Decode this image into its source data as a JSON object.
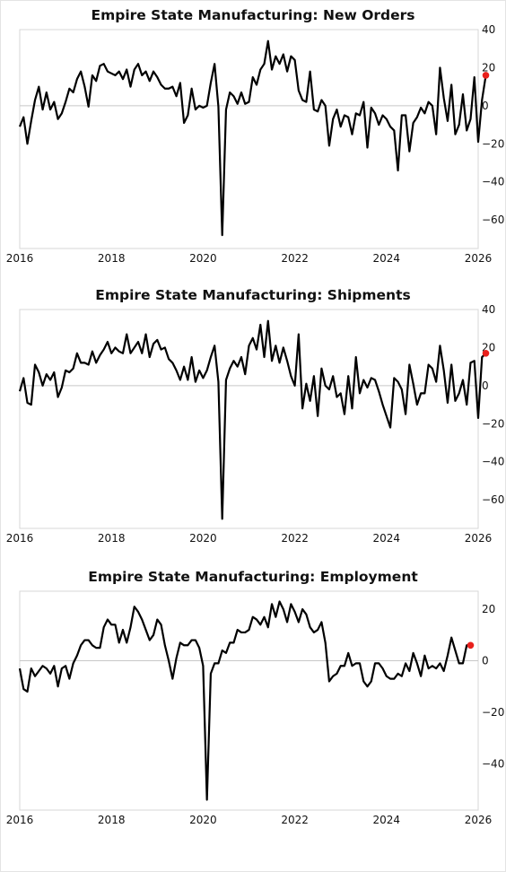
{
  "chart_data": [
    {
      "type": "line",
      "title": "Empire State Manufacturing: New Orders",
      "xlabel": "",
      "ylabel": "",
      "xlim": [
        2016,
        2026
      ],
      "ylim": [
        -75,
        40
      ],
      "x_ticks": [
        "2016",
        "2018",
        "2020",
        "2022",
        "2024",
        "2026"
      ],
      "y_ticks": [
        "40",
        "20",
        "0",
        "−20",
        "−40",
        "−60"
      ],
      "y_tick_values": [
        40,
        20,
        0,
        -20,
        -40,
        -60
      ],
      "grid": false,
      "zero_line": true,
      "line_color": "#000000",
      "marker_color": "#e8201c",
      "series": [
        {
          "start": "2016-01",
          "values": [
            -11,
            -6,
            -20,
            -8,
            3,
            10,
            -2,
            7,
            -2,
            2,
            -7,
            -4,
            2,
            9,
            7,
            14,
            18,
            10,
            -0.5,
            16,
            13,
            21,
            22,
            18,
            17,
            16,
            18,
            14,
            19,
            10,
            19,
            22,
            16,
            18,
            13,
            18,
            15,
            11,
            9,
            9,
            10,
            5,
            12,
            -9,
            -5,
            9,
            -2,
            0,
            -1,
            0,
            12,
            22,
            -0.5,
            -68,
            -2,
            7,
            5,
            1,
            7,
            1,
            2,
            15,
            11,
            19,
            22,
            34,
            19,
            26,
            22,
            27,
            18,
            26,
            24,
            8,
            3,
            2,
            18,
            -2,
            -3,
            3,
            0,
            -21,
            -7,
            -2,
            -11,
            -5,
            -6,
            -15,
            -4,
            -5,
            2,
            -22,
            -1,
            -4,
            -10,
            -5,
            -7,
            -11,
            -13,
            -34,
            -5,
            -5,
            -24,
            -9,
            -6,
            -1,
            -4,
            2,
            0,
            -15,
            20,
            4,
            -8,
            11,
            -15,
            -10,
            6,
            -13,
            -7,
            15,
            -19,
            3,
            16
          ]
        }
      ]
    },
    {
      "type": "line",
      "title": "Empire State Manufacturing: Shipments",
      "xlabel": "",
      "ylabel": "",
      "xlim": [
        2016,
        2026
      ],
      "ylim": [
        -75,
        40
      ],
      "x_ticks": [
        "2016",
        "2018",
        "2020",
        "2022",
        "2024",
        "2026"
      ],
      "y_ticks": [
        "40",
        "20",
        "0",
        "−20",
        "−40",
        "−60"
      ],
      "y_tick_values": [
        40,
        20,
        0,
        -20,
        -40,
        -60
      ],
      "grid": false,
      "zero_line": true,
      "line_color": "#000000",
      "marker_color": "#e8201c",
      "series": [
        {
          "start": "2016-01",
          "values": [
            -3,
            4,
            -9,
            -10,
            11,
            7,
            0,
            6,
            3,
            7,
            -6,
            -1,
            8,
            7,
            9,
            17,
            12,
            12,
            11,
            18,
            12,
            16,
            19,
            23,
            17,
            20,
            18,
            17,
            27,
            17,
            20,
            23,
            17,
            27,
            15,
            22,
            24,
            19,
            20,
            14,
            12,
            8,
            3,
            10,
            3,
            15,
            2,
            8,
            4,
            8,
            15,
            21,
            2,
            -70,
            3,
            9,
            13,
            10,
            15,
            6,
            21,
            25,
            19,
            32,
            15,
            34,
            13,
            21,
            12,
            20,
            13,
            5,
            0,
            27,
            -12,
            1,
            -8,
            5,
            -16,
            9,
            0,
            -2,
            5,
            -6,
            -4,
            -15,
            5,
            -12,
            15,
            -4,
            3,
            -1,
            4,
            3,
            -3,
            -10,
            -16,
            -22,
            4,
            2,
            -2,
            -15,
            11,
            1,
            -10,
            -4,
            -4,
            11,
            9,
            2,
            21,
            8,
            -9,
            11,
            -8,
            -4,
            3,
            -10,
            12,
            13,
            -17,
            15,
            17
          ]
        }
      ]
    },
    {
      "type": "line",
      "title": "Empire State Manufacturing: Employment",
      "xlabel": "",
      "ylabel": "",
      "xlim": [
        2016,
        2026
      ],
      "ylim": [
        -58,
        27
      ],
      "x_ticks": [
        "2016",
        "2018",
        "2020",
        "2022",
        "2024",
        "2026"
      ],
      "y_ticks": [
        "20",
        "0",
        "−20",
        "−40"
      ],
      "y_tick_values": [
        20,
        0,
        -20,
        -40
      ],
      "grid": false,
      "zero_line": true,
      "line_color": "#000000",
      "marker_color": "#e8201c",
      "series": [
        {
          "start": "2016-01",
          "values": [
            -3,
            -11,
            -12,
            -3,
            -6,
            -4,
            -2,
            -3,
            -5,
            -2,
            -10,
            -3,
            -2,
            -7,
            -1,
            2,
            6,
            8,
            8,
            6,
            5,
            5,
            13,
            16,
            14,
            14,
            7,
            12,
            7,
            13,
            21,
            19,
            16,
            12,
            8,
            10,
            16,
            14,
            6,
            0,
            -7,
            1,
            7,
            6,
            6,
            8,
            8,
            5,
            -2,
            -54,
            -5,
            -1,
            -1,
            4,
            3,
            7,
            7,
            12,
            11,
            11,
            12,
            17,
            16,
            14,
            17,
            13,
            22,
            17,
            23,
            20,
            15,
            22,
            19,
            15,
            20,
            18,
            13,
            11,
            12,
            15,
            7,
            -8,
            -6,
            -5,
            -2,
            -2,
            3,
            -2,
            -1,
            -1,
            -8,
            -10,
            -8,
            -1,
            -1,
            -3,
            -6,
            -7,
            -7,
            -5,
            -6,
            -1,
            -4,
            3,
            -1,
            -6,
            2,
            -3,
            -2,
            -3,
            -1,
            -4,
            2,
            9,
            4,
            -1,
            -1,
            6,
            6
          ]
        }
      ]
    }
  ]
}
